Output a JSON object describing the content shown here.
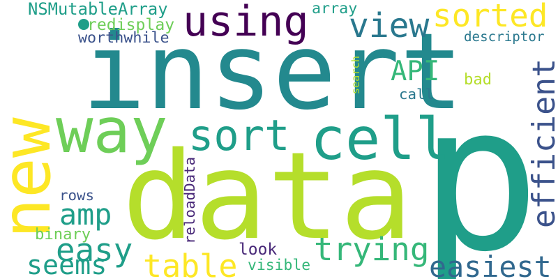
{
  "palette": {
    "teal": "#23898e",
    "teal_dark": "#2a788e",
    "green_teal": "#1f9e89",
    "green": "#35b779",
    "light_green": "#6ece58",
    "yellow_green": "#b5de2b",
    "yellow": "#fde725",
    "purple": "#440154",
    "indigo": "#3b528b",
    "indigo_dark": "#31688e",
    "violet": "#482878"
  },
  "words": [
    {
      "key": "insert",
      "text": "insert"
    },
    {
      "key": "data",
      "text": "data"
    },
    {
      "key": "p",
      "text": "p"
    },
    {
      "key": "new",
      "text": "new"
    },
    {
      "key": "cell",
      "text": "cell"
    },
    {
      "key": "way",
      "text": "way"
    },
    {
      "key": "using",
      "text": "using"
    },
    {
      "key": "sort",
      "text": "sort"
    },
    {
      "key": "sorted",
      "text": "sorted"
    },
    {
      "key": "efficient",
      "text": "efficient"
    },
    {
      "key": "view",
      "text": "view"
    },
    {
      "key": "API",
      "text": "API"
    },
    {
      "key": "trying",
      "text": "trying"
    },
    {
      "key": "easiest",
      "text": "easiest"
    },
    {
      "key": "table",
      "text": "table"
    },
    {
      "key": "easy",
      "text": "easy"
    },
    {
      "key": "seems",
      "text": "seems"
    },
    {
      "key": "amp",
      "text": "amp"
    },
    {
      "key": "NSMutableArray",
      "text": "NSMutableArray"
    },
    {
      "key": "redisplay",
      "text": "redisplay"
    },
    {
      "key": "worthwhile",
      "text": "worthwhile"
    },
    {
      "key": "array",
      "text": "array"
    },
    {
      "key": "descriptor",
      "text": "descriptor"
    },
    {
      "key": "search",
      "text": "search"
    },
    {
      "key": "call",
      "text": "call"
    },
    {
      "key": "bad",
      "text": "bad"
    },
    {
      "key": "rows",
      "text": "rows"
    },
    {
      "key": "binary",
      "text": "binary"
    },
    {
      "key": "reloadData",
      "text": "reloadData"
    },
    {
      "key": "look",
      "text": "look"
    },
    {
      "key": "visible",
      "text": "visible"
    }
  ]
}
